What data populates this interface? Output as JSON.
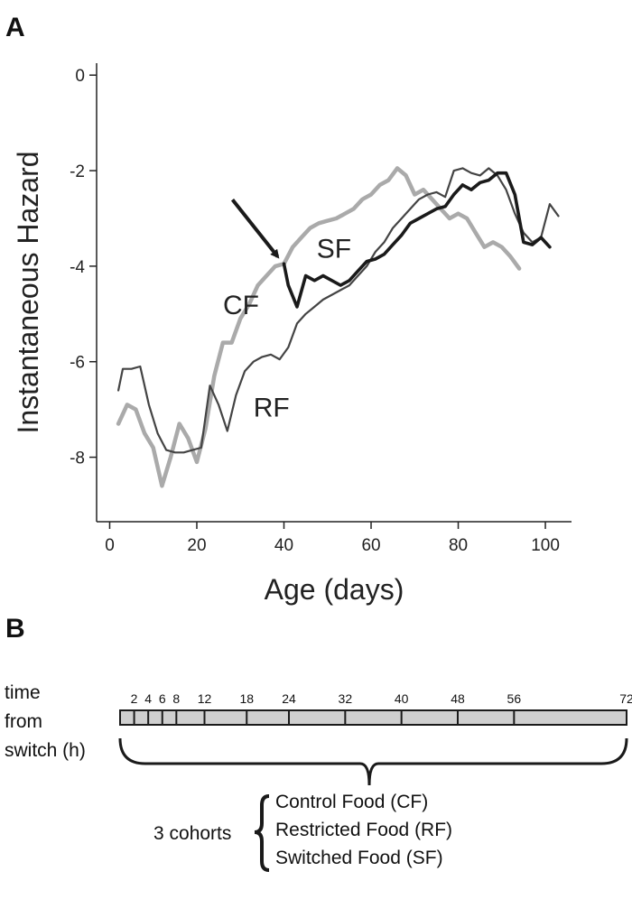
{
  "panel_a": {
    "letter": "A"
  },
  "panel_b": {
    "letter": "B"
  },
  "chart_data": {
    "type": "line",
    "title": "",
    "xlabel": "Age (days)",
    "ylabel": "Instantaneous Hazard",
    "xlim": [
      -3,
      106
    ],
    "ylim": [
      -9.35,
      0.25
    ],
    "xticks": [
      0,
      20,
      40,
      60,
      80,
      100
    ],
    "yticks": [
      0,
      -2,
      -4,
      -6,
      -8
    ],
    "annotation": {
      "label": "arrow pointing to diet switch at day 40",
      "x": 40,
      "y": -3.95
    },
    "series": [
      {
        "name": "CF",
        "color": "#aaaaaa",
        "width": 4.5,
        "label_pos": [
          26,
          -5.0
        ],
        "x": [
          2,
          4,
          6,
          8,
          10,
          12,
          14,
          16,
          18,
          20,
          22,
          24,
          26,
          28,
          30,
          32,
          34,
          36,
          38,
          40,
          42,
          44,
          46,
          48,
          50,
          52,
          54,
          56,
          58,
          60,
          62,
          64,
          66,
          68,
          70,
          72,
          74,
          76,
          78,
          80,
          82,
          84,
          86,
          88,
          90,
          92,
          94
        ],
        "y": [
          -7.3,
          -6.9,
          -7.0,
          -7.5,
          -7.8,
          -8.6,
          -8.0,
          -7.3,
          -7.6,
          -8.1,
          -7.4,
          -6.3,
          -5.6,
          -5.6,
          -5.1,
          -4.8,
          -4.4,
          -4.2,
          -4.0,
          -3.95,
          -3.6,
          -3.4,
          -3.2,
          -3.1,
          -3.05,
          -3.0,
          -2.9,
          -2.8,
          -2.6,
          -2.5,
          -2.3,
          -2.2,
          -1.95,
          -2.1,
          -2.5,
          -2.4,
          -2.6,
          -2.8,
          -3.0,
          -2.9,
          -3.0,
          -3.3,
          -3.6,
          -3.5,
          -3.6,
          -3.8,
          -4.05
        ]
      },
      {
        "name": "RF",
        "color": "#444444",
        "width": 2.2,
        "label_pos": [
          33,
          -7.15
        ],
        "x": [
          2,
          3,
          5,
          7,
          9,
          11,
          13,
          15,
          17,
          19,
          21,
          23,
          25,
          27,
          29,
          31,
          33,
          35,
          37,
          39,
          41,
          43,
          45,
          47,
          49,
          51,
          53,
          55,
          57,
          59,
          61,
          63,
          65,
          67,
          69,
          71,
          73,
          75,
          77,
          79,
          81,
          83,
          85,
          87,
          89,
          91,
          93,
          95,
          97,
          99,
          101,
          103
        ],
        "y": [
          -6.6,
          -6.15,
          -6.15,
          -6.1,
          -6.9,
          -7.5,
          -7.85,
          -7.9,
          -7.9,
          -7.85,
          -7.8,
          -6.5,
          -6.9,
          -7.45,
          -6.7,
          -6.2,
          -6.0,
          -5.9,
          -5.85,
          -5.95,
          -5.7,
          -5.2,
          -5.0,
          -4.85,
          -4.7,
          -4.6,
          -4.5,
          -4.4,
          -4.2,
          -4.0,
          -3.7,
          -3.5,
          -3.2,
          -3.0,
          -2.8,
          -2.6,
          -2.5,
          -2.45,
          -2.55,
          -2.0,
          -1.95,
          -2.05,
          -2.1,
          -1.95,
          -2.1,
          -2.4,
          -2.9,
          -3.3,
          -3.5,
          -3.4,
          -2.7,
          -2.95
        ]
      },
      {
        "name": "SF",
        "color": "#1a1a1a",
        "width": 3.6,
        "label_pos": [
          47.5,
          -3.82
        ],
        "x": [
          40,
          41,
          43,
          45,
          47,
          49,
          51,
          53,
          55,
          57,
          59,
          61,
          63,
          65,
          67,
          69,
          71,
          73,
          75,
          77,
          79,
          81,
          83,
          85,
          87,
          89,
          91,
          93,
          95,
          97,
          99,
          101
        ],
        "y": [
          -3.95,
          -4.4,
          -4.85,
          -4.2,
          -4.3,
          -4.2,
          -4.3,
          -4.4,
          -4.3,
          -4.1,
          -3.9,
          -3.85,
          -3.75,
          -3.55,
          -3.35,
          -3.1,
          -3.0,
          -2.9,
          -2.8,
          -2.75,
          -2.5,
          -2.3,
          -2.4,
          -2.25,
          -2.2,
          -2.05,
          -2.05,
          -2.5,
          -3.5,
          -3.55,
          -3.4,
          -3.6
        ]
      }
    ]
  },
  "timeline": {
    "label_lines": [
      "time",
      "from",
      "switch (h)"
    ],
    "max_hours": 72,
    "ticks": [
      {
        "hours": 2,
        "label": "2"
      },
      {
        "hours": 4,
        "label": "4"
      },
      {
        "hours": 6,
        "label": "6"
      },
      {
        "hours": 8,
        "label": "8"
      },
      {
        "hours": 12,
        "label": "12"
      },
      {
        "hours": 18,
        "label": "18"
      },
      {
        "hours": 24,
        "label": "24"
      },
      {
        "hours": 32,
        "label": "32"
      },
      {
        "hours": 40,
        "label": "40"
      },
      {
        "hours": 48,
        "label": "48"
      },
      {
        "hours": 56,
        "label": "56"
      },
      {
        "hours": 72,
        "label": "72"
      }
    ]
  },
  "cohorts": {
    "label": "3 cohorts",
    "items": [
      "Control Food (CF)",
      "Restricted Food (RF)",
      "Switched Food (SF)"
    ]
  }
}
